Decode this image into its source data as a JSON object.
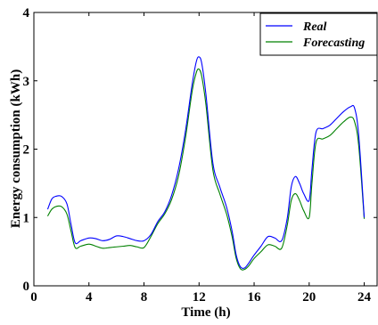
{
  "chart_data": {
    "type": "line",
    "xlabel": "Time (h)",
    "ylabel": "Energy consumption (kWh)",
    "xlim": [
      0,
      25
    ],
    "ylim": [
      0,
      4
    ],
    "xticks": [
      0,
      4,
      8,
      12,
      16,
      20,
      24
    ],
    "yticks": [
      0,
      1,
      2,
      3,
      4
    ],
    "grid": false,
    "legend_position": "top-right",
    "series": [
      {
        "name": "Real",
        "color": "#0000ff",
        "x": [
          1,
          1.3,
          1.6,
          2,
          2.4,
          2.7,
          3,
          3.4,
          4,
          4.5,
          5,
          5.5,
          6,
          6.5,
          7,
          7.5,
          8,
          8.5,
          9,
          9.5,
          10,
          10.5,
          11,
          11.5,
          11.8,
          12,
          12.2,
          12.5,
          13,
          13.5,
          14,
          14.4,
          14.7,
          15,
          15.3,
          15.6,
          16,
          16.5,
          17,
          17.5,
          18,
          18.4,
          18.7,
          19,
          19.3,
          19.6,
          20,
          20.2,
          20.5,
          21,
          21.5,
          22,
          22.5,
          23,
          23.3,
          23.6,
          24
        ],
        "y": [
          1.12,
          1.27,
          1.31,
          1.31,
          1.2,
          0.9,
          0.63,
          0.66,
          0.7,
          0.69,
          0.66,
          0.68,
          0.73,
          0.72,
          0.69,
          0.66,
          0.66,
          0.75,
          0.94,
          1.08,
          1.32,
          1.7,
          2.25,
          2.95,
          3.28,
          3.35,
          3.25,
          2.8,
          1.8,
          1.45,
          1.15,
          0.8,
          0.45,
          0.28,
          0.26,
          0.33,
          0.45,
          0.58,
          0.72,
          0.7,
          0.66,
          0.98,
          1.45,
          1.6,
          1.5,
          1.35,
          1.25,
          1.7,
          2.25,
          2.3,
          2.35,
          2.45,
          2.55,
          2.62,
          2.6,
          2.2,
          1.0
        ]
      },
      {
        "name": "Forecasting",
        "color": "#008000",
        "x": [
          1,
          1.3,
          1.6,
          2,
          2.4,
          2.7,
          3,
          3.4,
          4,
          4.5,
          5,
          5.5,
          6,
          6.5,
          7,
          7.5,
          8,
          8.5,
          9,
          9.5,
          10,
          10.5,
          11,
          11.5,
          11.8,
          12,
          12.2,
          12.5,
          13,
          13.5,
          14,
          14.4,
          14.7,
          15,
          15.3,
          15.6,
          16,
          16.5,
          17,
          17.5,
          18,
          18.4,
          18.7,
          19,
          19.3,
          19.6,
          20,
          20.2,
          20.5,
          21,
          21.5,
          22,
          22.5,
          23,
          23.3,
          23.6,
          24
        ],
        "y": [
          1.02,
          1.12,
          1.16,
          1.16,
          1.05,
          0.8,
          0.56,
          0.58,
          0.61,
          0.58,
          0.55,
          0.56,
          0.57,
          0.58,
          0.59,
          0.57,
          0.56,
          0.72,
          0.91,
          1.05,
          1.26,
          1.6,
          2.15,
          2.85,
          3.12,
          3.17,
          3.06,
          2.65,
          1.7,
          1.35,
          1.05,
          0.72,
          0.4,
          0.25,
          0.24,
          0.29,
          0.4,
          0.5,
          0.6,
          0.58,
          0.55,
          0.88,
          1.25,
          1.35,
          1.25,
          1.1,
          1.0,
          1.5,
          2.1,
          2.15,
          2.2,
          2.3,
          2.4,
          2.47,
          2.4,
          2.05,
          0.98
        ]
      }
    ]
  }
}
